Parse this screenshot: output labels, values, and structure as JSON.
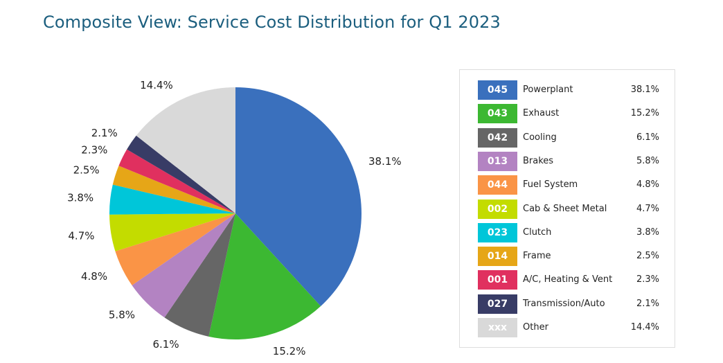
{
  "title": "Composite View: Service Cost Distribution for Q1 2023",
  "chart_data": {
    "type": "pie",
    "title": "Composite View: Service Cost Distribution for Q1 2023",
    "unit": "%",
    "slices": [
      {
        "code": "045",
        "label": "Powerplant",
        "value": 38.1,
        "display": "38.1%",
        "color": "#3a70bd"
      },
      {
        "code": "043",
        "label": "Exhaust",
        "value": 15.2,
        "display": "15.2%",
        "color": "#3cb832"
      },
      {
        "code": "042",
        "label": "Cooling",
        "value": 6.1,
        "display": "6.1%",
        "color": "#666666"
      },
      {
        "code": "013",
        "label": "Brakes",
        "value": 5.8,
        "display": "5.8%",
        "color": "#b383c2"
      },
      {
        "code": "044",
        "label": "Fuel System",
        "value": 4.8,
        "display": "4.8%",
        "color": "#fa9446"
      },
      {
        "code": "002",
        "label": "Cab & Sheet Metal",
        "value": 4.7,
        "display": "4.7%",
        "color": "#c3dc00"
      },
      {
        "code": "023",
        "label": "Clutch",
        "value": 3.8,
        "display": "3.8%",
        "color": "#00c6d9"
      },
      {
        "code": "014",
        "label": "Frame",
        "value": 2.5,
        "display": "2.5%",
        "color": "#e6a617"
      },
      {
        "code": "001",
        "label": "A/C, Heating & Vent",
        "value": 2.3,
        "display": "2.3%",
        "color": "#e0305f"
      },
      {
        "code": "027",
        "label": "Transmission/Auto",
        "value": 2.1,
        "display": "2.1%",
        "color": "#383c66"
      },
      {
        "code": "xxx",
        "label": "Other",
        "value": 14.4,
        "display": "14.4%",
        "color": "#d9d9d9"
      }
    ],
    "legend_position": "right"
  }
}
